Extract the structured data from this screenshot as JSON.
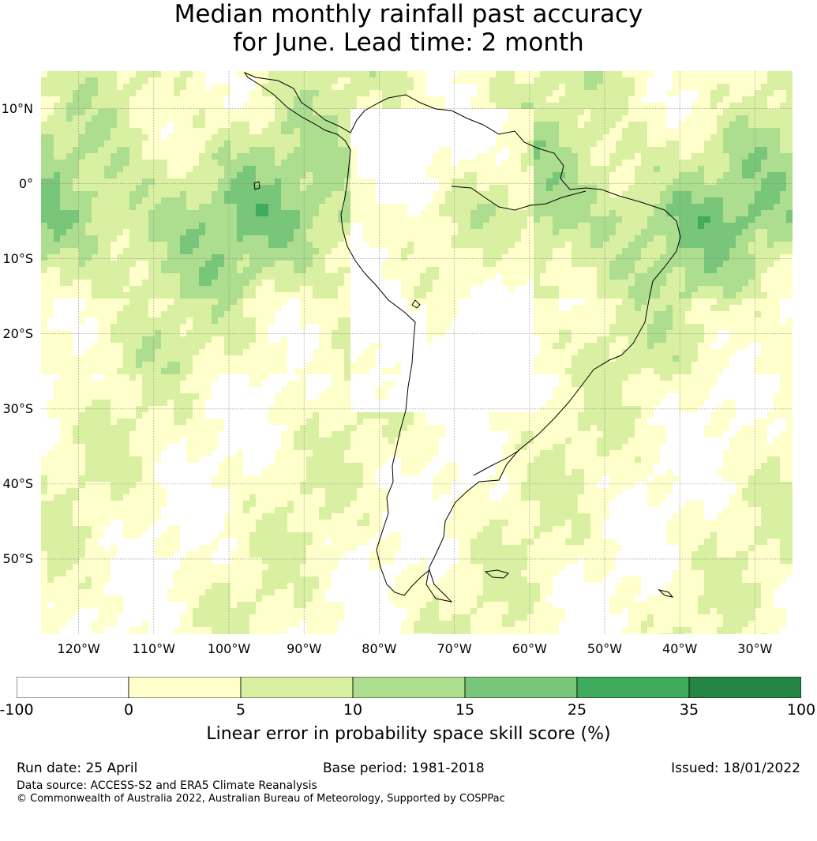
{
  "title_line1": "Median monthly rainfall past accuracy",
  "title_line2": "for June. Lead time: 2 month",
  "map": {
    "region": "South America",
    "lon_range": [
      -125,
      -25
    ],
    "lat_range": [
      -60,
      15
    ],
    "lat_ticks": [
      {
        "value": 10,
        "label": "10°N"
      },
      {
        "value": 0,
        "label": "0°"
      },
      {
        "value": -10,
        "label": "10°S"
      },
      {
        "value": -20,
        "label": "20°S"
      },
      {
        "value": -30,
        "label": "30°S"
      },
      {
        "value": -40,
        "label": "40°S"
      },
      {
        "value": -50,
        "label": "50°S"
      }
    ],
    "lon_ticks": [
      {
        "value": -120,
        "label": "120°W"
      },
      {
        "value": -110,
        "label": "110°W"
      },
      {
        "value": -100,
        "label": "100°W"
      },
      {
        "value": -90,
        "label": "90°W"
      },
      {
        "value": -80,
        "label": "80°W"
      },
      {
        "value": -70,
        "label": "70°W"
      },
      {
        "value": -60,
        "label": "60°W"
      },
      {
        "value": -50,
        "label": "50°W"
      },
      {
        "value": -40,
        "label": "40°W"
      },
      {
        "value": -30,
        "label": "30°W"
      }
    ],
    "grid": true,
    "coastline_color": "#000000"
  },
  "colorbar": {
    "bounds": [
      -100,
      0,
      5,
      10,
      15,
      25,
      35,
      100
    ],
    "tick_labels": [
      "-100",
      "0",
      "5",
      "10",
      "15",
      "25",
      "35",
      "100"
    ],
    "colors": [
      "#ffffff",
      "#ffffcc",
      "#d9f0a3",
      "#addd8e",
      "#78c679",
      "#41ab5d",
      "#238443"
    ],
    "label": "Linear error in probability space skill score (%)"
  },
  "footer": {
    "run_date": "Run date: 25 April",
    "base_period": "Base period: 1981-2018",
    "issued": "Issued: 18/01/2022",
    "data_source": "Data source: ACCESS-S2 and ERA5 Climate Reanalysis",
    "copyright": "© Commonwealth of Australia 2022, Australian Bureau of Meteorology, Supported by COSPPac"
  }
}
